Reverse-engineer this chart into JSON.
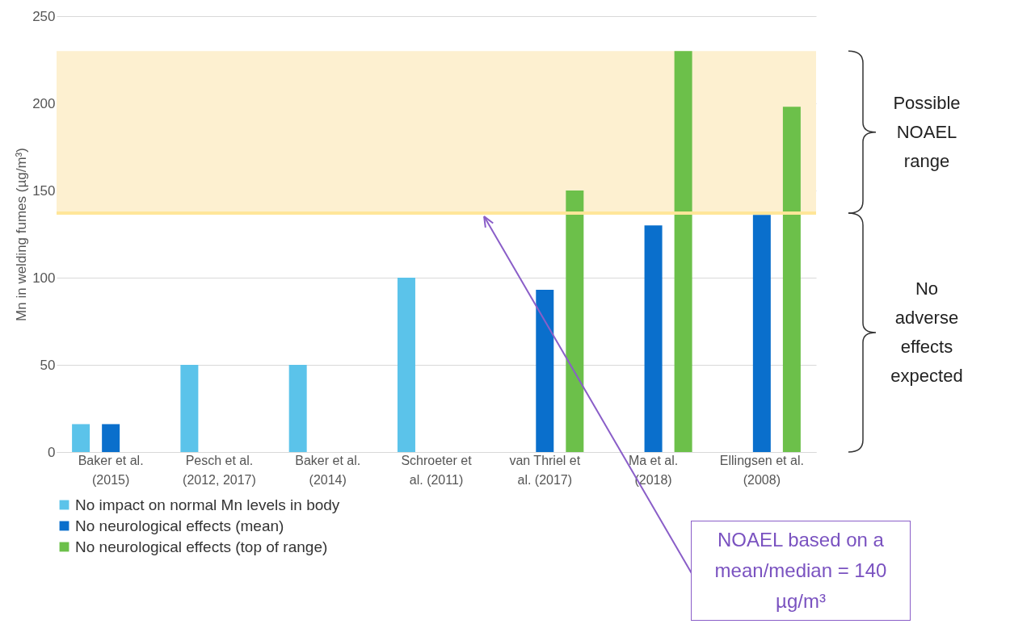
{
  "chart_data": {
    "type": "bar",
    "ylabel": "Mn in welding fumes (µg/m³)",
    "categories": [
      "Baker et al.\n(2015)",
      "Pesch et al.\n(2012, 2017)",
      "Baker et al.\n(2014)",
      "Schroeter et\nal. (2011)",
      "van Thriel et\nal. (2017)",
      "Ma et al.\n(2018)",
      "Ellingsen et al.\n(2008)"
    ],
    "series": [
      {
        "name": "No impact on normal Mn levels in body",
        "color": "#5bc3ea",
        "values": [
          16,
          50,
          50,
          100,
          null,
          null,
          null
        ]
      },
      {
        "name": "No neurological effects (mean)",
        "color": "#0a6fcc",
        "values": [
          16,
          null,
          null,
          null,
          93,
          130,
          136
        ]
      },
      {
        "name": "No neurological effects (top of range)",
        "color": "#6cc04a",
        "values": [
          null,
          null,
          null,
          null,
          150,
          230,
          198
        ]
      }
    ],
    "ylim": [
      0,
      250
    ],
    "yticks": [
      0,
      50,
      100,
      150,
      200,
      250
    ],
    "grid": "y",
    "legend": "bottom",
    "ref_lines": [
      {
        "axis": "y",
        "value": 137,
        "color": "#ffe699"
      }
    ],
    "bands": [
      {
        "axis": "y",
        "from": 137,
        "to": 230,
        "color": "#fdf0d0"
      }
    ],
    "annotations": [
      "Possible NOAEL range",
      "No adverse effects expected",
      "NOAEL based on a mean/median = 140 µg/m³"
    ]
  }
}
